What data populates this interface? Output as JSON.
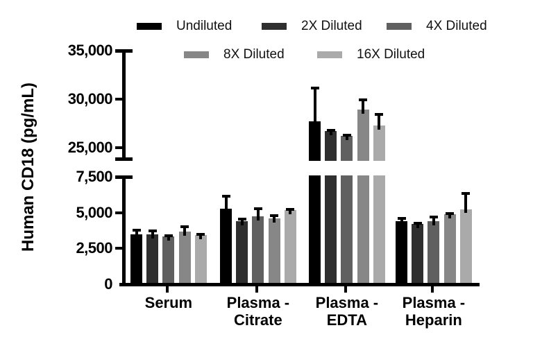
{
  "chart_data": {
    "type": "bar",
    "title": "",
    "ylabel": "Human CD18 (pg/mL)",
    "xlabel": "",
    "grid": false,
    "legend_position": "top",
    "error_bars": "plus-sd",
    "categories": [
      "Serum",
      "Plasma - Citrate",
      "Plasma - EDTA",
      "Plasma - Heparin"
    ],
    "series": [
      {
        "name": "Undiluted",
        "color": "#000000",
        "values": [
          3500,
          5290,
          27700,
          4400
        ],
        "errors": [
          360,
          950,
          3600,
          280
        ]
      },
      {
        "name": "2X Diluted",
        "color": "#2f2f2f",
        "values": [
          3470,
          4390,
          26700,
          4200
        ],
        "errors": [
          370,
          270,
          200,
          160
        ]
      },
      {
        "name": "4X Diluted",
        "color": "#606060",
        "values": [
          3360,
          4740,
          26200,
          4400
        ],
        "errors": [
          115,
          640,
          250,
          400
        ]
      },
      {
        "name": "8X Diluted",
        "color": "#878787",
        "values": [
          3680,
          4600,
          28900,
          4900
        ],
        "errors": [
          440,
          280,
          1150,
          130
        ]
      },
      {
        "name": "16X Diluted",
        "color": "#aaaaaa",
        "values": [
          3440,
          5190,
          27300,
          5250
        ],
        "errors": [
          160,
          130,
          1300,
          1170
        ]
      }
    ],
    "y_axis": {
      "broken": true,
      "lower_segment": {
        "min": 0,
        "max": 7500,
        "ticks": [
          0,
          2500,
          5000,
          7500
        ],
        "tick_labels": [
          "0",
          "2,500",
          "5,000",
          "7,500"
        ]
      },
      "upper_segment": {
        "min": 25000,
        "max": 35000,
        "ticks": [
          25000,
          30000,
          35000
        ],
        "tick_labels": [
          "25,000",
          "30,000",
          "35,000"
        ]
      }
    },
    "error_bar_color": "#000000",
    "axis_color": "#000000"
  }
}
